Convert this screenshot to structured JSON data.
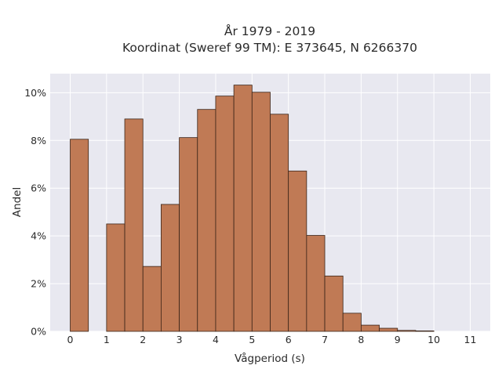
{
  "chart_data": {
    "type": "bar",
    "title_line1": "År 1979 - 2019",
    "title_line2": "Koordinat (Sweref 99 TM): E 373645, N 6266370",
    "xlabel": "Vågperiod (s)",
    "ylabel": "Andel",
    "xlim": [
      -0.55,
      11.55
    ],
    "ylim": [
      0,
      10.8
    ],
    "x_ticks": [
      0,
      1,
      2,
      3,
      4,
      5,
      6,
      7,
      8,
      9,
      10,
      11
    ],
    "x_tick_labels": [
      "0",
      "1",
      "2",
      "3",
      "4",
      "5",
      "6",
      "7",
      "8",
      "9",
      "10",
      "11"
    ],
    "y_ticks": [
      0,
      2,
      4,
      6,
      8,
      10
    ],
    "y_tick_labels": [
      "0%",
      "2%",
      "4%",
      "6%",
      "8%",
      "10%"
    ],
    "bin_width": 0.5,
    "bins": [
      {
        "start": 0.0,
        "value": 8.05
      },
      {
        "start": 0.5,
        "value": 0.0
      },
      {
        "start": 1.0,
        "value": 4.5
      },
      {
        "start": 1.5,
        "value": 8.9
      },
      {
        "start": 2.0,
        "value": 2.72
      },
      {
        "start": 2.5,
        "value": 5.32
      },
      {
        "start": 3.0,
        "value": 8.12
      },
      {
        "start": 3.5,
        "value": 9.3
      },
      {
        "start": 4.0,
        "value": 9.86
      },
      {
        "start": 4.5,
        "value": 10.32
      },
      {
        "start": 5.0,
        "value": 10.02
      },
      {
        "start": 5.5,
        "value": 9.1
      },
      {
        "start": 6.0,
        "value": 6.72
      },
      {
        "start": 6.5,
        "value": 4.02
      },
      {
        "start": 7.0,
        "value": 2.32
      },
      {
        "start": 7.5,
        "value": 0.76
      },
      {
        "start": 8.0,
        "value": 0.26
      },
      {
        "start": 8.5,
        "value": 0.13
      },
      {
        "start": 9.0,
        "value": 0.04
      },
      {
        "start": 9.5,
        "value": 0.02
      }
    ],
    "grid": true,
    "colors": {
      "bar_fill": "#c07a55",
      "bar_edge": "#3a2418",
      "plot_background": "#e8e8f0",
      "grid": "#ffffff"
    }
  }
}
